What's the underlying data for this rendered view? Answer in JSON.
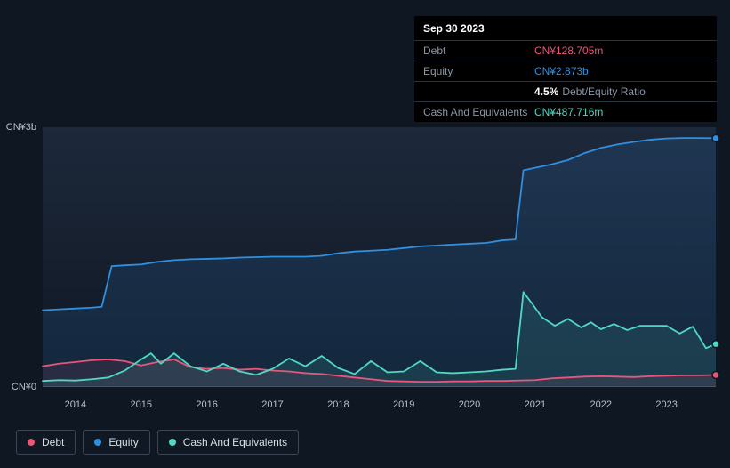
{
  "chart": {
    "type": "line",
    "background_color": "#0f1722",
    "plot_gradient_top": "rgba(40,55,80,0.55)",
    "grid_color": "#4a5666",
    "text_color": "#b8c2cf",
    "y_axis": {
      "min": 0,
      "max": 3000,
      "ticks": [
        {
          "value": 0,
          "label": "CN¥0"
        },
        {
          "value": 3000,
          "label": "CN¥3b"
        }
      ]
    },
    "x_axis": {
      "start": 2013.5,
      "end": 2023.75,
      "tick_years": [
        2014,
        2015,
        2016,
        2017,
        2018,
        2019,
        2020,
        2021,
        2022,
        2023
      ]
    },
    "line_width": 1.8,
    "end_marker_radius": 4,
    "series": [
      {
        "key": "debt",
        "label": "Debt",
        "color": "#e8567a",
        "fill": "rgba(232,86,122,0.10)",
        "data": [
          [
            2013.5,
            230
          ],
          [
            2013.75,
            260
          ],
          [
            2014.0,
            280
          ],
          [
            2014.25,
            300
          ],
          [
            2014.5,
            310
          ],
          [
            2014.75,
            290
          ],
          [
            2015.0,
            240
          ],
          [
            2015.25,
            280
          ],
          [
            2015.5,
            310
          ],
          [
            2015.75,
            220
          ],
          [
            2016.0,
            200
          ],
          [
            2016.25,
            210
          ],
          [
            2016.5,
            190
          ],
          [
            2016.75,
            200
          ],
          [
            2017.0,
            180
          ],
          [
            2017.25,
            170
          ],
          [
            2017.5,
            150
          ],
          [
            2017.75,
            140
          ],
          [
            2018.0,
            120
          ],
          [
            2018.25,
            100
          ],
          [
            2018.5,
            80
          ],
          [
            2018.75,
            60
          ],
          [
            2019.0,
            55
          ],
          [
            2019.25,
            50
          ],
          [
            2019.5,
            50
          ],
          [
            2019.75,
            55
          ],
          [
            2020.0,
            55
          ],
          [
            2020.25,
            60
          ],
          [
            2020.5,
            60
          ],
          [
            2020.75,
            65
          ],
          [
            2021.0,
            70
          ],
          [
            2021.25,
            90
          ],
          [
            2021.5,
            100
          ],
          [
            2021.75,
            110
          ],
          [
            2022.0,
            115
          ],
          [
            2022.25,
            110
          ],
          [
            2022.5,
            105
          ],
          [
            2022.75,
            115
          ],
          [
            2023.0,
            120
          ],
          [
            2023.25,
            125
          ],
          [
            2023.5,
            125
          ],
          [
            2023.75,
            128.705
          ]
        ]
      },
      {
        "key": "equity",
        "label": "Equity",
        "color": "#2f8fe0",
        "fill": "rgba(47,143,224,0.14)",
        "data": [
          [
            2013.5,
            880
          ],
          [
            2013.75,
            890
          ],
          [
            2014.0,
            900
          ],
          [
            2014.25,
            910
          ],
          [
            2014.4,
            920
          ],
          [
            2014.55,
            1390
          ],
          [
            2014.75,
            1400
          ],
          [
            2015.0,
            1410
          ],
          [
            2015.25,
            1440
          ],
          [
            2015.5,
            1460
          ],
          [
            2015.75,
            1470
          ],
          [
            2016.0,
            1475
          ],
          [
            2016.25,
            1480
          ],
          [
            2016.5,
            1490
          ],
          [
            2016.75,
            1495
          ],
          [
            2017.0,
            1500
          ],
          [
            2017.25,
            1500
          ],
          [
            2017.5,
            1500
          ],
          [
            2017.75,
            1510
          ],
          [
            2018.0,
            1540
          ],
          [
            2018.25,
            1560
          ],
          [
            2018.5,
            1570
          ],
          [
            2018.75,
            1580
          ],
          [
            2019.0,
            1600
          ],
          [
            2019.25,
            1620
          ],
          [
            2019.5,
            1630
          ],
          [
            2019.75,
            1640
          ],
          [
            2020.0,
            1650
          ],
          [
            2020.25,
            1660
          ],
          [
            2020.5,
            1690
          ],
          [
            2020.7,
            1700
          ],
          [
            2020.82,
            2500
          ],
          [
            2021.0,
            2530
          ],
          [
            2021.25,
            2570
          ],
          [
            2021.5,
            2620
          ],
          [
            2021.75,
            2700
          ],
          [
            2022.0,
            2760
          ],
          [
            2022.25,
            2800
          ],
          [
            2022.5,
            2830
          ],
          [
            2022.75,
            2855
          ],
          [
            2023.0,
            2870
          ],
          [
            2023.25,
            2875
          ],
          [
            2023.5,
            2875
          ],
          [
            2023.75,
            2873
          ]
        ]
      },
      {
        "key": "cash",
        "label": "Cash And Equivalents",
        "color": "#4fd9c2",
        "fill": "rgba(79,217,194,0.12)",
        "data": [
          [
            2013.5,
            60
          ],
          [
            2013.75,
            70
          ],
          [
            2014.0,
            65
          ],
          [
            2014.25,
            80
          ],
          [
            2014.5,
            100
          ],
          [
            2014.75,
            180
          ],
          [
            2015.0,
            310
          ],
          [
            2015.15,
            380
          ],
          [
            2015.3,
            260
          ],
          [
            2015.5,
            380
          ],
          [
            2015.75,
            230
          ],
          [
            2016.0,
            170
          ],
          [
            2016.25,
            260
          ],
          [
            2016.5,
            170
          ],
          [
            2016.75,
            130
          ],
          [
            2017.0,
            200
          ],
          [
            2017.25,
            320
          ],
          [
            2017.5,
            230
          ],
          [
            2017.75,
            350
          ],
          [
            2018.0,
            210
          ],
          [
            2018.25,
            140
          ],
          [
            2018.5,
            290
          ],
          [
            2018.75,
            160
          ],
          [
            2019.0,
            170
          ],
          [
            2019.25,
            290
          ],
          [
            2019.5,
            160
          ],
          [
            2019.75,
            150
          ],
          [
            2020.0,
            160
          ],
          [
            2020.25,
            170
          ],
          [
            2020.5,
            190
          ],
          [
            2020.7,
            200
          ],
          [
            2020.82,
            1090
          ],
          [
            2020.95,
            960
          ],
          [
            2021.1,
            800
          ],
          [
            2021.3,
            700
          ],
          [
            2021.5,
            780
          ],
          [
            2021.7,
            680
          ],
          [
            2021.85,
            740
          ],
          [
            2022.0,
            660
          ],
          [
            2022.2,
            720
          ],
          [
            2022.4,
            650
          ],
          [
            2022.6,
            700
          ],
          [
            2022.8,
            700
          ],
          [
            2023.0,
            700
          ],
          [
            2023.2,
            610
          ],
          [
            2023.4,
            690
          ],
          [
            2023.6,
            440
          ],
          [
            2023.75,
            487.716
          ]
        ]
      }
    ]
  },
  "tooltip": {
    "date": "Sep 30 2023",
    "rows": {
      "debt": {
        "label": "Debt",
        "value": "CN¥128.705m",
        "color": "#e8567a"
      },
      "equity": {
        "label": "Equity",
        "value": "CN¥2.873b",
        "color": "#2f8fe0"
      },
      "ratio": {
        "pct": "4.5%",
        "text": "Debt/Equity Ratio"
      },
      "cash": {
        "label": "Cash And Equivalents",
        "value": "CN¥487.716m",
        "color": "#4fd9c2"
      }
    }
  },
  "legend": {
    "debt": {
      "label": "Debt",
      "color": "#e8567a"
    },
    "equity": {
      "label": "Equity",
      "color": "#2f8fe0"
    },
    "cash": {
      "label": "Cash And Equivalents",
      "color": "#4fd9c2"
    }
  }
}
